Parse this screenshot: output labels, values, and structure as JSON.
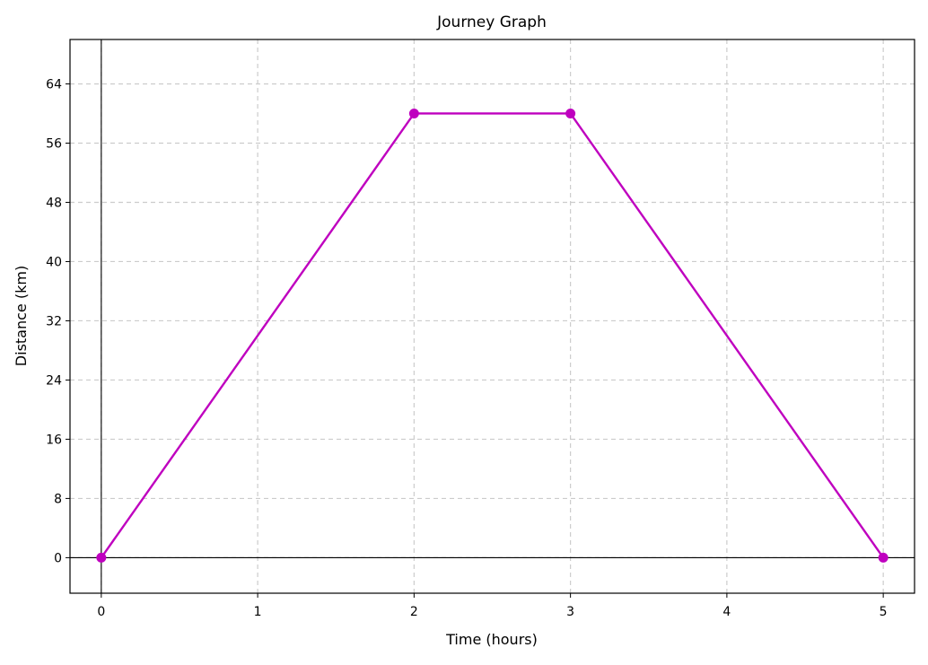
{
  "chart_data": {
    "type": "line",
    "title": "Journey Graph",
    "xlabel": "Time (hours)",
    "ylabel": "Distance (km)",
    "xlim": [
      -0.2,
      5.2
    ],
    "ylim": [
      -4.8,
      70
    ],
    "xticks": [
      0,
      1,
      2,
      3,
      4,
      5
    ],
    "yticks": [
      0,
      8,
      16,
      24,
      32,
      40,
      48,
      56,
      64
    ],
    "grid": true,
    "zero_lines": true,
    "series": [
      {
        "color": "#bf00bf",
        "marker": "circle",
        "x": [
          0,
          2,
          3,
          5
        ],
        "y": [
          0,
          60,
          60,
          0
        ]
      }
    ]
  }
}
